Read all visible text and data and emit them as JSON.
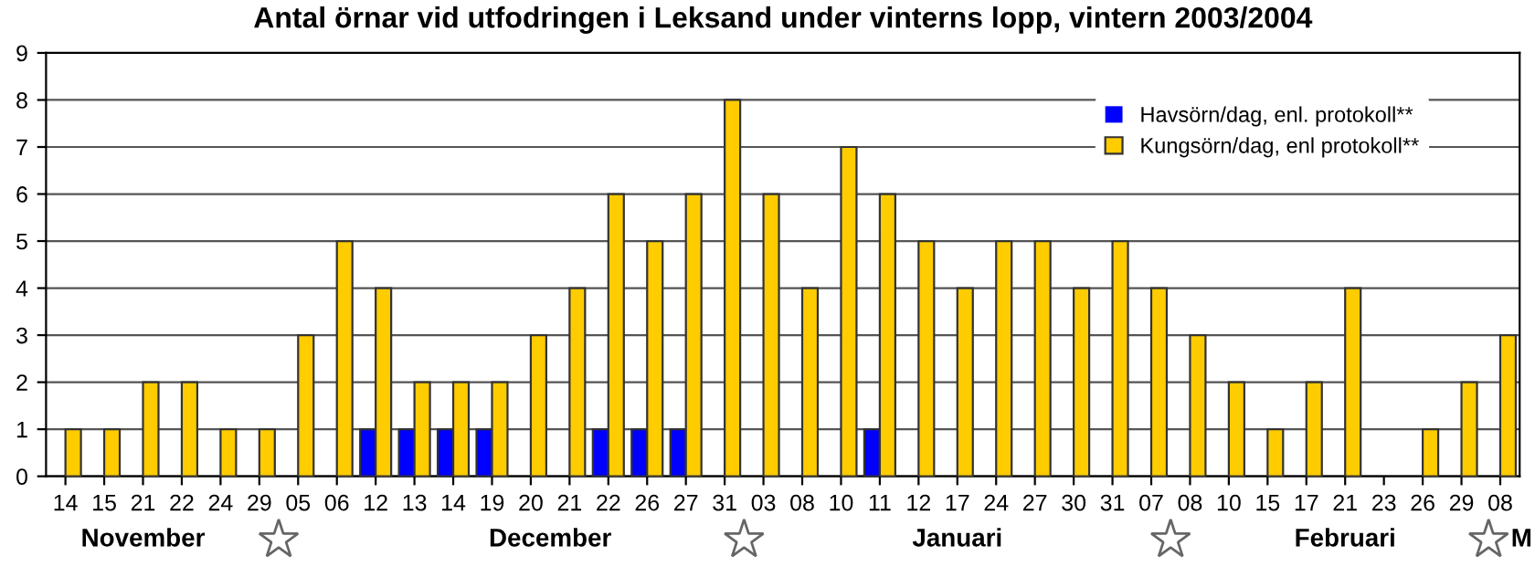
{
  "chart_data": {
    "type": "bar",
    "title": "Antal örnar vid utfodringen i Leksand under vinterns lopp, vintern 2003/2004",
    "categories": [
      "14",
      "15",
      "21",
      "22",
      "24",
      "29",
      "05",
      "06",
      "12",
      "13",
      "14",
      "19",
      "20",
      "21",
      "22",
      "26",
      "27",
      "31",
      "03",
      "08",
      "10",
      "11",
      "12",
      "17",
      "24",
      "27",
      "30",
      "31",
      "07",
      "08",
      "10",
      "15",
      "17",
      "21",
      "23",
      "26",
      "29",
      "08"
    ],
    "series": [
      {
        "name": "Havsörn/dag, enl. protokoll**",
        "color": "#0000ff",
        "values": [
          0,
          0,
          0,
          0,
          0,
          0,
          0,
          0,
          1,
          1,
          1,
          1,
          0,
          0,
          1,
          1,
          1,
          0,
          0,
          0,
          0,
          1,
          0,
          0,
          0,
          0,
          0,
          0,
          0,
          0,
          0,
          0,
          0,
          0,
          0,
          0,
          0,
          0
        ]
      },
      {
        "name": "Kungsörn/dag, enl protokoll**",
        "color": "#ffcc00",
        "values": [
          1,
          1,
          2,
          2,
          1,
          1,
          3,
          5,
          4,
          2,
          2,
          2,
          3,
          4,
          6,
          5,
          6,
          8,
          6,
          4,
          7,
          6,
          5,
          4,
          5,
          5,
          4,
          5,
          4,
          3,
          2,
          1,
          2,
          4,
          0,
          1,
          2,
          3
        ]
      }
    ],
    "ylim": [
      0,
      9
    ],
    "yticks": [
      0,
      1,
      2,
      3,
      4,
      5,
      6,
      7,
      8,
      9
    ],
    "grid": "y",
    "legend": "top right",
    "annotations": [
      "November",
      "December",
      "Januari",
      "Februari",
      "M"
    ]
  }
}
